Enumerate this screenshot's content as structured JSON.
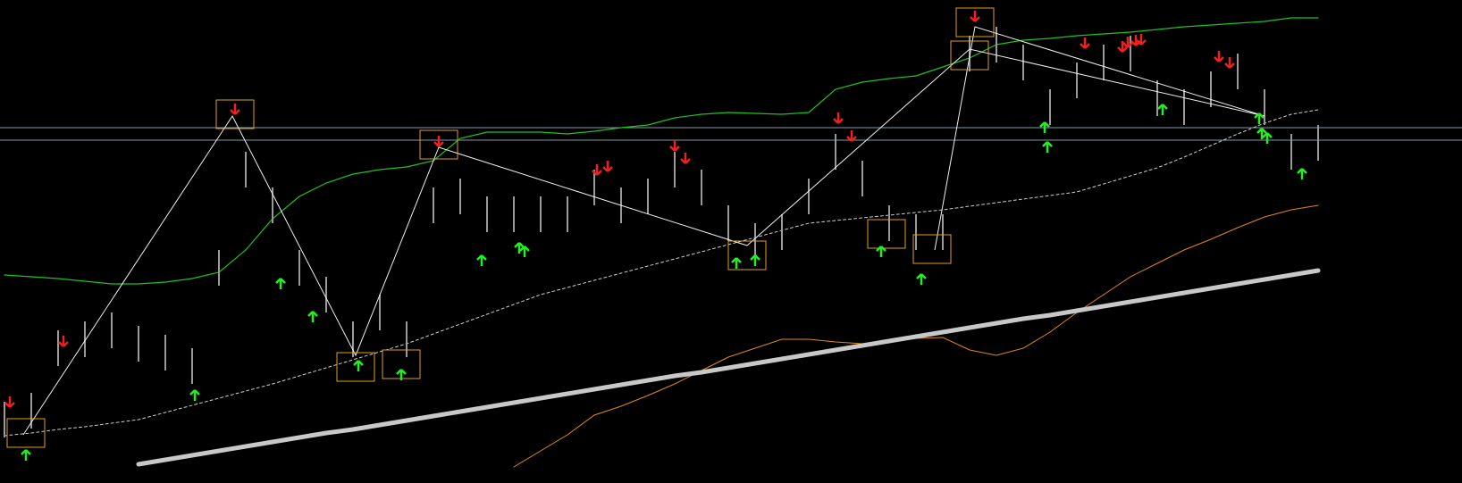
{
  "chart_data": {
    "type": "price",
    "ylim": [
      0,
      541
    ],
    "high": [
      91,
      101,
      171,
      181,
      191,
      176,
      166,
      151,
      261,
      371,
      331,
      261,
      231,
      181,
      211,
      181,
      331,
      341,
      321,
      321,
      321,
      321,
      351,
      331,
      341,
      371,
      351,
      311,
      291,
      301,
      341,
      391,
      361,
      311,
      301,
      301,
      501,
      511,
      491,
      441,
      471,
      491,
      501,
      451,
      441,
      461,
      481,
      441,
      391,
      401
    ],
    "low": [
      51,
      61,
      131,
      141,
      151,
      136,
      126,
      111,
      221,
      331,
      291,
      221,
      191,
      141,
      171,
      141,
      291,
      301,
      281,
      281,
      281,
      281,
      311,
      291,
      301,
      331,
      311,
      271,
      251,
      261,
      301,
      351,
      321,
      271,
      261,
      261,
      461,
      471,
      451,
      401,
      431,
      451,
      461,
      411,
      401,
      421,
      441,
      401,
      351,
      361
    ],
    "bar_color": "#9a9a9a",
    "lines": [
      {
        "values": [
          233,
          231,
          229,
          226,
          223,
          223,
          225,
          229,
          236,
          261,
          296,
          321,
          336,
          346,
          351,
          354,
          361,
          386,
          393,
          393,
          393,
          391,
          394,
          398,
          401,
          409,
          413,
          415,
          414,
          413,
          415,
          441,
          449,
          453,
          456,
          466,
          476,
          491,
          496,
          498,
          501,
          503,
          505,
          508,
          511,
          513,
          515,
          517,
          521,
          521
        ],
        "color": "#1fc21f",
        "width": 1.2,
        "dashed": false
      },
      {
        "values": [
          53,
          56,
          60,
          63,
          67,
          71,
          79,
          87,
          95,
          103,
          111,
          120,
          129,
          138,
          147,
          156,
          167,
          178,
          189,
          200,
          211,
          219,
          227,
          235,
          243,
          251,
          259,
          267,
          275,
          283,
          291,
          294,
          297,
          300,
          303,
          306,
          310,
          314,
          318,
          322,
          326,
          335,
          344,
          353,
          365,
          378,
          391,
          403,
          413,
          418
        ],
        "color": "#cfcfcf",
        "width": 1,
        "dashed": true
      },
      {
        "values": [
          null,
          null,
          null,
          null,
          null,
          null,
          null,
          null,
          null,
          null,
          null,
          null,
          null,
          null,
          null,
          null,
          null,
          null,
          null,
          18,
          36,
          54,
          76,
          86,
          98,
          111,
          126,
          141,
          151,
          161,
          161,
          158,
          156,
          159,
          162,
          163,
          149,
          143,
          151,
          169,
          191,
          211,
          231,
          246,
          261,
          273,
          286,
          298,
          306,
          311
        ],
        "color": "#e08a12",
        "width": 1,
        "dashed": false
      },
      {
        "values": [
          null,
          null,
          null,
          null,
          null,
          21,
          26,
          31,
          36,
          41,
          46,
          51,
          56,
          60,
          65,
          70,
          75,
          80,
          85,
          90,
          95,
          100,
          105,
          110,
          115,
          120,
          124,
          129,
          134,
          139,
          144,
          149,
          154,
          159,
          164,
          169,
          174,
          179,
          184,
          188,
          193,
          198,
          203,
          208,
          213,
          218,
          223,
          228,
          233,
          238
        ],
        "color": "#c8c8c8",
        "width": 5,
        "dashed": false
      }
    ],
    "levels": [
      398,
      384
    ],
    "level_color": "#8a9aa8",
    "zigzags": [
      {
        "x": [
          0.7,
          8.5,
          13.1,
          16.2,
          27.7,
          36,
          47
        ],
        "values": [
          54,
          411,
          143,
          376,
          266,
          486,
          411
        ]
      },
      {
        "x": [
          34.7,
          36.2,
          47
        ],
        "values": [
          261,
          511,
          411
        ]
      }
    ],
    "zigzag_color": "#f0f0f0",
    "boxes": {
      "x": [
        0.8,
        8.6,
        13.1,
        14.8,
        16.2,
        27.7,
        32.9,
        34.6,
        36,
        36.2
      ],
      "values": [
        56,
        413,
        130,
        133,
        379,
        255,
        279,
        262,
        479,
        516
      ]
    },
    "box_color": "#e0a020",
    "up_arrows": {
      "x": [
        0.8,
        7.1,
        10.3,
        11.5,
        13.2,
        14.8,
        17.8,
        19.2,
        19.4,
        27.3,
        28,
        32.7,
        34.2,
        38.8,
        38.9,
        43.2,
        46.8,
        46.9,
        47.1,
        48.4
      ],
      "values": [
        31,
        98,
        223,
        186,
        131,
        121,
        249,
        263,
        259,
        246,
        249,
        259,
        228,
        398,
        376,
        418,
        408,
        391,
        386,
        346
      ],
      "color": "#22ee22"
    },
    "down_arrows": {
      "x": [
        0.2,
        2.2,
        8.6,
        16.2,
        22.1,
        22.5,
        25,
        25.4,
        31.1,
        31.6,
        36.2,
        40.3,
        41.7,
        41.9,
        42.2,
        42.4,
        45.3,
        45.7
      ],
      "values": [
        91,
        159,
        419,
        383,
        351,
        355,
        378,
        364,
        409,
        389,
        523,
        493,
        489,
        494,
        496,
        497,
        478,
        471
      ],
      "color": "#ee2020"
    }
  }
}
